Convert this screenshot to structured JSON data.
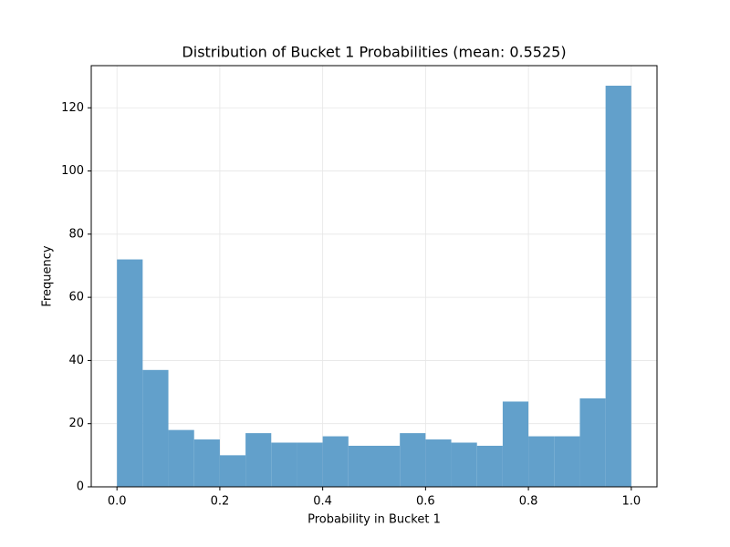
{
  "chart_data": {
    "type": "histogram",
    "title": "Distribution of Bucket 1 Probabilities (mean: 0.5525)",
    "x_label": "Probability in Bucket 1",
    "y_label": "Frequency",
    "bins": [
      0,
      0.05,
      0.1,
      0.15,
      0.2,
      0.25,
      0.3,
      0.35,
      0.4,
      0.45,
      0.5,
      0.55,
      0.6,
      0.65,
      0.7,
      0.75,
      0.8,
      0.85,
      0.9,
      0.95,
      1
    ],
    "counts": [
      72,
      37,
      18,
      15,
      10,
      17,
      14,
      14,
      16,
      13,
      13,
      17,
      15,
      14,
      13,
      27,
      16,
      16,
      28,
      127
    ],
    "color": "#62a0cb",
    "xlim": [
      -0.05,
      1.05
    ],
    "ylim": [
      0,
      133.35
    ],
    "xticks": [
      {
        "value": 0,
        "label": "0.0"
      },
      {
        "value": 0.2,
        "label": "0.2"
      },
      {
        "value": 0.4,
        "label": "0.4"
      },
      {
        "value": 0.6,
        "label": "0.6"
      },
      {
        "value": 0.8,
        "label": "0.8"
      },
      {
        "value": 1,
        "label": "1.0"
      }
    ],
    "yticks": [
      0,
      20,
      40,
      60,
      80,
      100,
      120
    ],
    "grid": true
  }
}
